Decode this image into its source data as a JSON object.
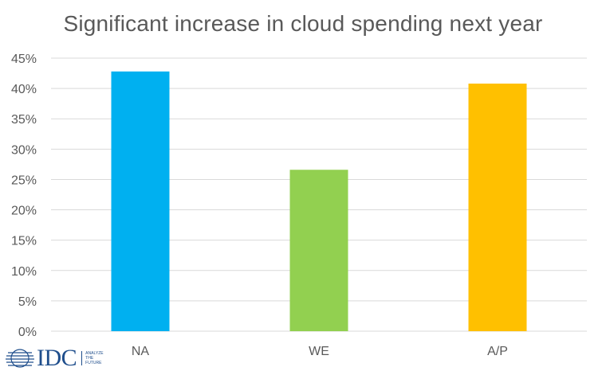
{
  "chart_data": {
    "type": "bar",
    "title": "Significant increase in cloud spending next year",
    "categories": [
      "NA",
      "WE",
      "A/P"
    ],
    "values": [
      0.428,
      0.266,
      0.408
    ],
    "bar_colors": [
      "#00B0F0",
      "#92D050",
      "#FFC000"
    ],
    "ylim": [
      0,
      0.45
    ],
    "yticks": [
      0,
      0.05,
      0.1,
      0.15,
      0.2,
      0.25,
      0.3,
      0.35,
      0.4,
      0.45
    ],
    "ytick_labels": [
      "0%",
      "5%",
      "10%",
      "15%",
      "20%",
      "25%",
      "30%",
      "35%",
      "40%",
      "45%"
    ],
    "xlabel": "",
    "ylabel": "",
    "grid": true,
    "legend": "none"
  },
  "logo": {
    "brand": "IDC",
    "tagline": "ANALYZE\nTHE\nFUTURE",
    "color": "#1F4E8C"
  },
  "colors": {
    "title_text": "#595959",
    "axis_text": "#595959",
    "gridline": "#D9D9D9"
  }
}
